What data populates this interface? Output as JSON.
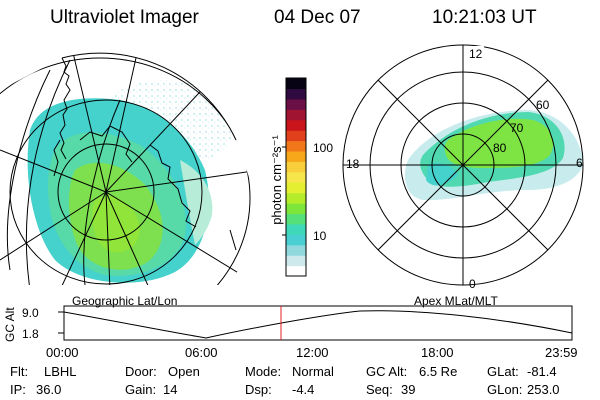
{
  "header": {
    "instrument": "Ultraviolet Imager",
    "date": "04 Dec 07",
    "time": "10:21:03 UT"
  },
  "colorbar": {
    "unit_label": "photon cm⁻²s⁻¹",
    "ticks": [
      "100",
      "10"
    ],
    "colors": [
      "#ffffff",
      "#cde9ec",
      "#8fd9dc",
      "#49cfd2",
      "#3fd8b8",
      "#55e07a",
      "#7ee63a",
      "#b4ec2a",
      "#e4ef32",
      "#f6e64c",
      "#f8cf3a",
      "#f6a81a",
      "#f0781a",
      "#e0401a",
      "#c8141a",
      "#a01432",
      "#6a1046",
      "#2e0a40",
      "#070314"
    ]
  },
  "left_map": {
    "caption": "Geographic Lat/Lon"
  },
  "right_map": {
    "caption": "Apex MLat/MLT",
    "mlt_labels": {
      "top": "12",
      "left": "18",
      "right": "6",
      "bottom": "0"
    },
    "lat_labels": [
      "60",
      "70",
      "80"
    ]
  },
  "altitude_plot": {
    "ylabel": "GC Alt",
    "yticks": [
      "9.0",
      "1.8"
    ],
    "xticks": [
      "00:00",
      "06:00",
      "12:00",
      "18:00",
      "23:59"
    ],
    "marker_color": "#e02020"
  },
  "status": {
    "flt_label": "Flt:",
    "flt_value": "LBHL",
    "ip_label": "IP:",
    "ip_value": "36.0",
    "door_label": "Door:",
    "door_value": "Open",
    "gain_label": "Gain:",
    "gain_value": "14",
    "mode_label": "Mode:",
    "mode_value": "Normal",
    "dsp_label": "Dsp:",
    "dsp_value": "-4.4",
    "gcalt_label": "GC Alt:",
    "gcalt_value": "6.5 Re",
    "seq_label": "Seq:",
    "seq_value": "39",
    "glat_label": "GLat:",
    "glat_value": "-81.4",
    "glon_label": "GLon:",
    "glon_value": "253.0"
  }
}
